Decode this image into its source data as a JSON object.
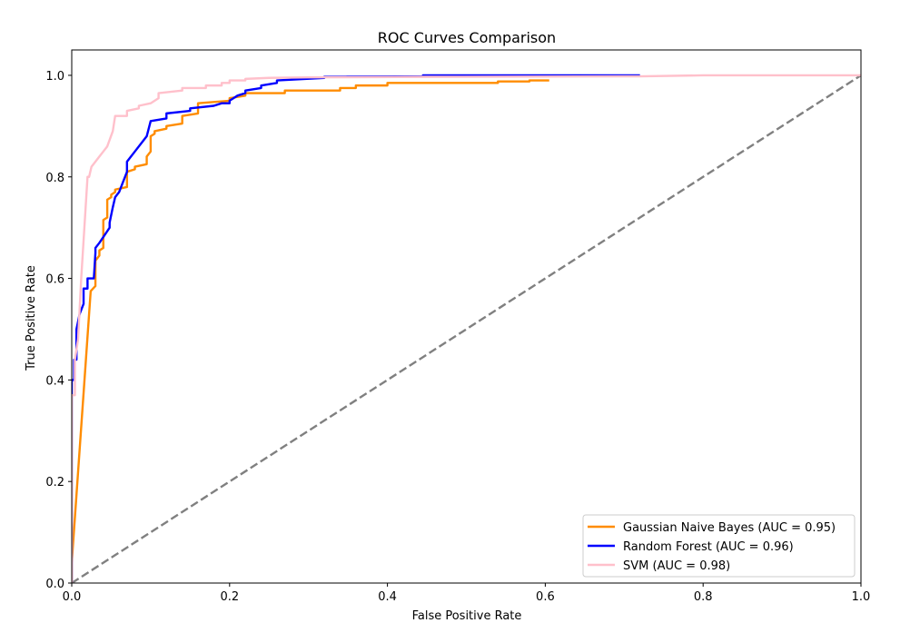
{
  "chart_data": {
    "type": "line",
    "title": "ROC Curves Comparison",
    "xlabel": "False Positive Rate",
    "ylabel": "True Positive Rate",
    "xlim": [
      0.0,
      1.0
    ],
    "ylim": [
      0.0,
      1.05
    ],
    "x_ticks": [
      "0.0",
      "0.2",
      "0.4",
      "0.6",
      "0.8",
      "1.0"
    ],
    "y_ticks": [
      "0.0",
      "0.2",
      "0.4",
      "0.6",
      "0.8",
      "1.0"
    ],
    "grid": false,
    "legend_position": "lower right",
    "diagonal": {
      "x": [
        0.0,
        1.0
      ],
      "y": [
        0.0,
        1.0
      ],
      "color": "#808080",
      "style": "dashed"
    },
    "series": [
      {
        "name": "Gaussian Naive Bayes (AUC = 0.95)",
        "color": "#ff8c00",
        "x": [
          0.0,
          0.0,
          0.024,
          0.03,
          0.03,
          0.035,
          0.035,
          0.04,
          0.04,
          0.045,
          0.045,
          0.05,
          0.05,
          0.055,
          0.055,
          0.07,
          0.07,
          0.08,
          0.08,
          0.095,
          0.095,
          0.1,
          0.1,
          0.105,
          0.105,
          0.12,
          0.12,
          0.14,
          0.14,
          0.16,
          0.16,
          0.2,
          0.2,
          0.22,
          0.22,
          0.27,
          0.27,
          0.34,
          0.34,
          0.36,
          0.36,
          0.4,
          0.4,
          0.54,
          0.54,
          0.58,
          0.58,
          0.605
        ],
        "y": [
          0.0,
          0.04,
          0.575,
          0.585,
          0.635,
          0.645,
          0.655,
          0.66,
          0.715,
          0.72,
          0.755,
          0.76,
          0.765,
          0.77,
          0.775,
          0.78,
          0.81,
          0.815,
          0.82,
          0.825,
          0.84,
          0.85,
          0.88,
          0.885,
          0.89,
          0.895,
          0.9,
          0.905,
          0.92,
          0.925,
          0.945,
          0.95,
          0.955,
          0.96,
          0.965,
          0.965,
          0.97,
          0.97,
          0.975,
          0.975,
          0.98,
          0.98,
          0.985,
          0.985,
          0.988,
          0.988,
          0.99,
          0.99
        ]
      },
      {
        "name": "Random Forest (AUC = 0.96)",
        "color": "#0000ff",
        "x": [
          0.0,
          0.0,
          0.003,
          0.003,
          0.006,
          0.006,
          0.01,
          0.015,
          0.015,
          0.02,
          0.02,
          0.028,
          0.03,
          0.03,
          0.035,
          0.035,
          0.048,
          0.048,
          0.052,
          0.055,
          0.06,
          0.065,
          0.07,
          0.07,
          0.075,
          0.08,
          0.09,
          0.095,
          0.1,
          0.12,
          0.12,
          0.15,
          0.15,
          0.18,
          0.19,
          0.2,
          0.2,
          0.21,
          0.22,
          0.22,
          0.24,
          0.24,
          0.26,
          0.26,
          0.32,
          0.32,
          0.445,
          0.445,
          0.72
        ],
        "y": [
          0.0,
          0.4,
          0.4,
          0.44,
          0.44,
          0.5,
          0.53,
          0.55,
          0.58,
          0.58,
          0.6,
          0.6,
          0.65,
          0.66,
          0.67,
          0.67,
          0.7,
          0.71,
          0.74,
          0.76,
          0.77,
          0.79,
          0.81,
          0.83,
          0.84,
          0.85,
          0.87,
          0.88,
          0.91,
          0.915,
          0.925,
          0.93,
          0.935,
          0.94,
          0.945,
          0.945,
          0.95,
          0.96,
          0.965,
          0.97,
          0.975,
          0.98,
          0.985,
          0.99,
          0.995,
          0.997,
          0.998,
          1.0,
          1.0
        ]
      },
      {
        "name": "SVM (AUC = 0.98)",
        "color": "#ffc0cb",
        "x": [
          0.0,
          0.0,
          0.004,
          0.004,
          0.008,
          0.012,
          0.012,
          0.02,
          0.022,
          0.025,
          0.03,
          0.035,
          0.04,
          0.045,
          0.052,
          0.055,
          0.07,
          0.07,
          0.085,
          0.085,
          0.1,
          0.11,
          0.11,
          0.14,
          0.14,
          0.17,
          0.17,
          0.19,
          0.19,
          0.2,
          0.2,
          0.22,
          0.22,
          0.25,
          0.3,
          0.45,
          0.7,
          0.72,
          0.8,
          1.0
        ],
        "y": [
          0.0,
          0.37,
          0.37,
          0.44,
          0.48,
          0.6,
          0.6,
          0.8,
          0.8,
          0.82,
          0.83,
          0.84,
          0.85,
          0.86,
          0.89,
          0.92,
          0.92,
          0.93,
          0.935,
          0.94,
          0.945,
          0.955,
          0.965,
          0.97,
          0.975,
          0.975,
          0.98,
          0.98,
          0.985,
          0.985,
          0.99,
          0.99,
          0.993,
          0.995,
          0.996,
          0.997,
          0.998,
          0.998,
          1.0,
          1.0
        ]
      }
    ]
  }
}
